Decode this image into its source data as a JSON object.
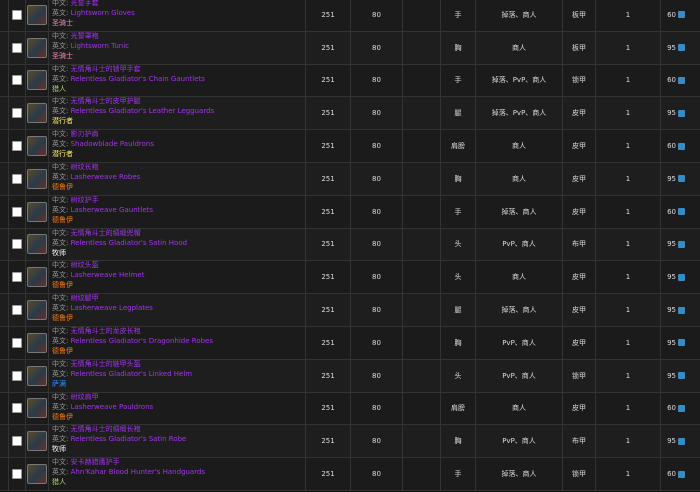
{
  "labels": {
    "cn": "中文:",
    "en": "英文:"
  },
  "rows": [
    {
      "cn": "光誓手套",
      "en": "Lightsworn Gloves",
      "class": "圣骑士",
      "class_color": "#f58cba",
      "ilvl": 251,
      "req": 80,
      "slot": "手",
      "source": "掉落、商人",
      "armor": "板甲",
      "count": 1,
      "price": 60
    },
    {
      "cn": "光誓罩袍",
      "en": "Lightsworn Tunic",
      "class": "圣骑士",
      "class_color": "#f58cba",
      "ilvl": 251,
      "req": 80,
      "slot": "胸",
      "source": "商人",
      "armor": "板甲",
      "count": 1,
      "price": 95
    },
    {
      "cn": "无情角斗士的锁甲手套",
      "en": "Relentless Gladiator's Chain Gauntlets",
      "class": "猎人",
      "class_color": "#abd473",
      "ilvl": 251,
      "req": 80,
      "slot": "手",
      "source": "掉落、PvP、商人",
      "armor": "锁甲",
      "count": 1,
      "price": 60
    },
    {
      "cn": "无情角斗士的皮甲护腿",
      "en": "Relentless Gladiator's Leather Legguards",
      "class": "潜行者",
      "class_color": "#fff569",
      "ilvl": 251,
      "req": 80,
      "slot": "腿",
      "source": "掉落、PvP、商人",
      "armor": "皮甲",
      "count": 1,
      "price": 95
    },
    {
      "cn": "影刃护肩",
      "en": "Shadowblade Pauldrons",
      "class": "潜行者",
      "class_color": "#fff569",
      "ilvl": 251,
      "req": 80,
      "slot": "肩膀",
      "source": "商人",
      "armor": "皮甲",
      "count": 1,
      "price": 60
    },
    {
      "cn": "树纹长袍",
      "en": "Lasherweave Robes",
      "class": "德鲁伊",
      "class_color": "#ff7d0a",
      "ilvl": 251,
      "req": 80,
      "slot": "胸",
      "source": "商人",
      "armor": "皮甲",
      "count": 1,
      "price": 95
    },
    {
      "cn": "树纹护手",
      "en": "Lasherweave Gauntlets",
      "class": "德鲁伊",
      "class_color": "#ff7d0a",
      "ilvl": 251,
      "req": 80,
      "slot": "手",
      "source": "掉落、商人",
      "armor": "皮甲",
      "count": 1,
      "price": 60
    },
    {
      "cn": "无情角斗士的绸缎兜帽",
      "en": "Relentless Gladiator's Satin Hood",
      "class": "牧师",
      "class_color": "#ffffff",
      "ilvl": 251,
      "req": 80,
      "slot": "头",
      "source": "PvP、商人",
      "armor": "布甲",
      "count": 1,
      "price": 95
    },
    {
      "cn": "树纹头盔",
      "en": "Lasherweave Helmet",
      "class": "德鲁伊",
      "class_color": "#ff7d0a",
      "ilvl": 251,
      "req": 80,
      "slot": "头",
      "source": "商人",
      "armor": "皮甲",
      "count": 1,
      "price": 95
    },
    {
      "cn": "树纹腿甲",
      "en": "Lasherweave Legplates",
      "class": "德鲁伊",
      "class_color": "#ff7d0a",
      "ilvl": 251,
      "req": 80,
      "slot": "腿",
      "source": "掉落、商人",
      "armor": "皮甲",
      "count": 1,
      "price": 95
    },
    {
      "cn": "无情角斗士的龙皮长袍",
      "en": "Relentless Gladiator's Dragonhide Robes",
      "class": "德鲁伊",
      "class_color": "#ff7d0a",
      "ilvl": 251,
      "req": 80,
      "slot": "胸",
      "source": "PvP、商人",
      "armor": "皮甲",
      "count": 1,
      "price": 95
    },
    {
      "cn": "无情角斗士的链甲头盔",
      "en": "Relentless Gladiator's Linked Helm",
      "class": "萨满",
      "class_color": "#2f8cff",
      "ilvl": 251,
      "req": 80,
      "slot": "头",
      "source": "PvP、商人",
      "armor": "锁甲",
      "count": 1,
      "price": 95
    },
    {
      "cn": "树纹肩甲",
      "en": "Lasherweave Pauldrons",
      "class": "德鲁伊",
      "class_color": "#ff7d0a",
      "ilvl": 251,
      "req": 80,
      "slot": "肩膀",
      "source": "商人",
      "armor": "皮甲",
      "count": 1,
      "price": 60
    },
    {
      "cn": "无情角斗士的绸缎长袍",
      "en": "Relentless Gladiator's Satin Robe",
      "class": "牧师",
      "class_color": "#ffffff",
      "ilvl": 251,
      "req": 80,
      "slot": "胸",
      "source": "PvP、商人",
      "armor": "布甲",
      "count": 1,
      "price": 95
    },
    {
      "cn": "安卡赫猎鹰护手",
      "en": "Ahn'Kahar Blood Hunter's Handguards",
      "class": "猎人",
      "class_color": "#abd473",
      "ilvl": 251,
      "req": 80,
      "slot": "手",
      "source": "掉落、商人",
      "armor": "锁甲",
      "count": 1,
      "price": 60
    }
  ]
}
